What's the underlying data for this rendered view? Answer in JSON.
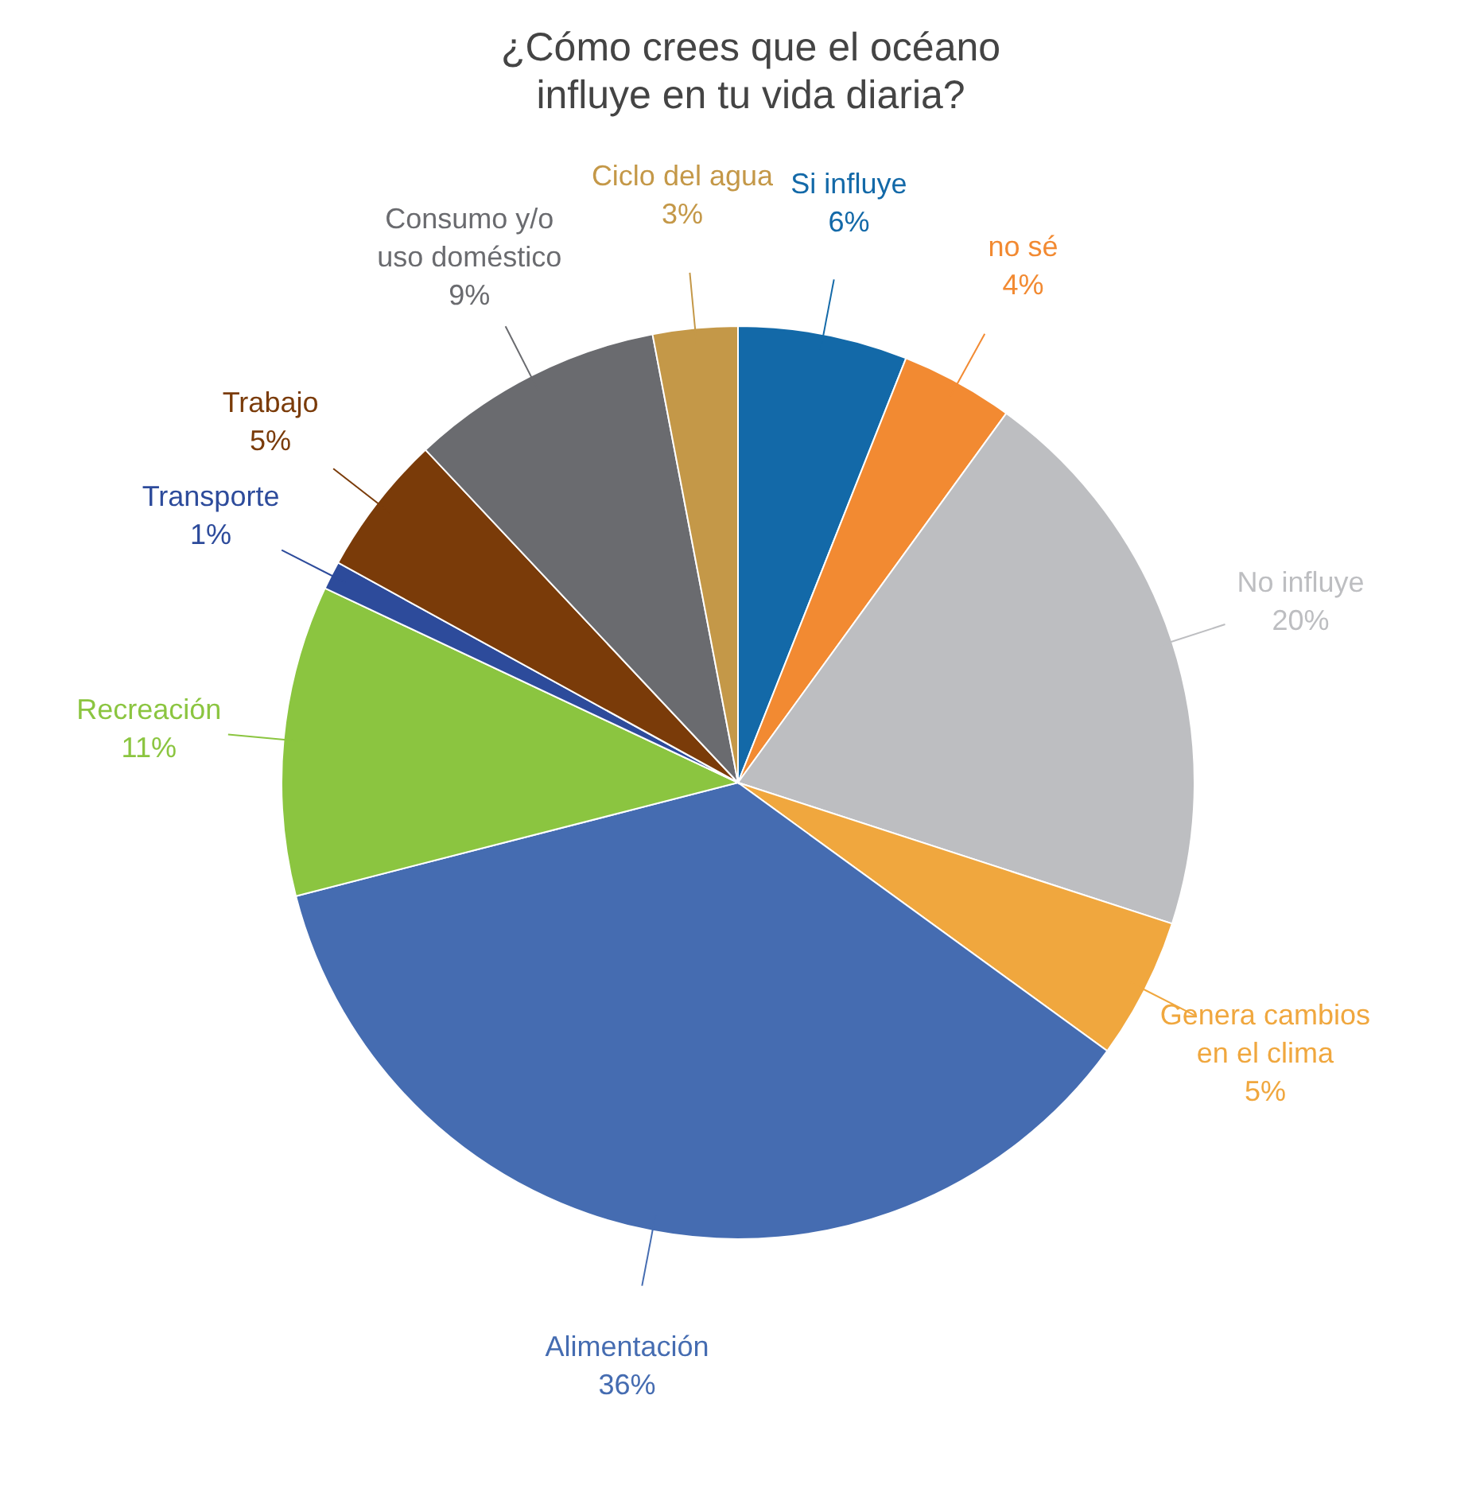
{
  "chart_data": {
    "type": "pie",
    "title": "¿Cómo crees que el océano influye en tu vida diaria?",
    "categories": [
      "Si influye",
      "no sé",
      "No influye",
      "Genera cambios en el clima",
      "Alimentación",
      "Recreación",
      "Transporte",
      "Trabajo",
      "Consumo y/o uso doméstico",
      "Ciclo del agua"
    ],
    "values": [
      6,
      4,
      20,
      5,
      36,
      11,
      1,
      5,
      9,
      3
    ],
    "value_labels": [
      "6%",
      "4%",
      "20%",
      "5%",
      "36%",
      "11%",
      "1%",
      "5%",
      "9%",
      "3%"
    ],
    "colors": [
      "#1369a8",
      "#f28a32",
      "#bdbec1",
      "#f0a73e",
      "#456cb1",
      "#8bc540",
      "#2d4b9b",
      "#7a3b09",
      "#6a6b6f",
      "#c49848"
    ]
  }
}
